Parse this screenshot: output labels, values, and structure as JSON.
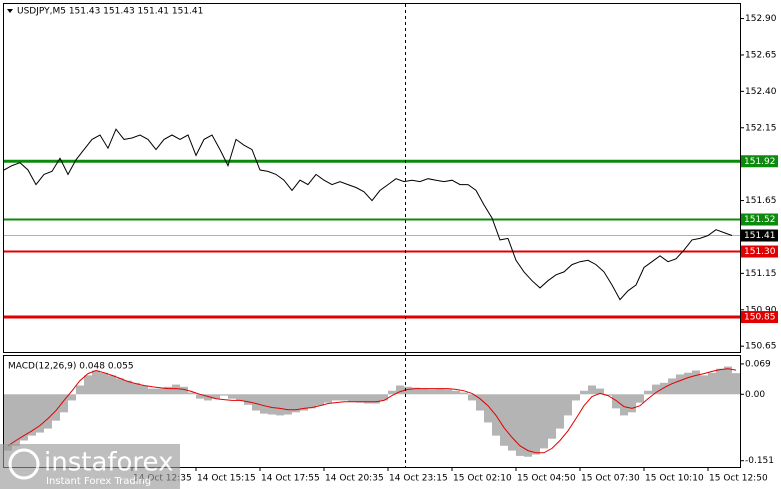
{
  "chart_data": [
    {
      "type": "line",
      "title": "USDJPY,M5  151.43 151.43 151.41 151.41",
      "color": "#000000",
      "values": [
        151.86,
        151.89,
        151.91,
        151.86,
        151.76,
        151.83,
        151.85,
        151.94,
        151.83,
        151.93,
        152.0,
        152.07,
        152.1,
        152.01,
        152.14,
        152.07,
        152.08,
        152.1,
        152.07,
        152.0,
        152.07,
        152.1,
        152.07,
        152.1,
        151.96,
        152.07,
        152.1,
        152.0,
        151.89,
        152.07,
        152.03,
        152.0,
        151.86,
        151.85,
        151.83,
        151.79,
        151.72,
        151.79,
        151.76,
        151.83,
        151.79,
        151.76,
        151.78,
        151.76,
        151.74,
        151.71,
        151.65,
        151.72,
        151.76,
        151.8,
        151.78,
        151.79,
        151.78,
        151.8,
        151.79,
        151.78,
        151.79,
        151.76,
        151.76,
        151.72,
        151.62,
        151.53,
        151.38,
        151.39,
        151.24,
        151.16,
        151.1,
        151.05,
        151.1,
        151.14,
        151.16,
        151.21,
        151.23,
        151.24,
        151.21,
        151.16,
        151.07,
        150.97,
        151.03,
        151.07,
        151.19,
        151.23,
        151.27,
        151.23,
        151.25,
        151.31,
        151.38,
        151.39,
        151.41,
        151.45,
        151.43,
        151.41
      ],
      "xlim": [
        0,
        92
      ],
      "xticks": [
        {
          "value": 16,
          "label": "14 Oct 12:35"
        },
        {
          "value": 24,
          "label": "14 Oct 15:15"
        },
        {
          "value": 32,
          "label": "14 Oct 17:55"
        },
        {
          "value": 40,
          "label": "14 Oct 20:35"
        },
        {
          "value": 48,
          "label": "14 Oct 23:15"
        },
        {
          "value": 56,
          "label": "15 Oct 02:10"
        },
        {
          "value": 64,
          "label": "15 Oct 04:50"
        },
        {
          "value": 72,
          "label": "15 Oct 07:30"
        },
        {
          "value": 80,
          "label": "15 Oct 10:10"
        },
        {
          "value": 88,
          "label": "15 Oct 12:50"
        }
      ],
      "ylim": [
        150.61,
        153.0
      ],
      "yticks": [
        {
          "value": 152.9,
          "label": "152.90"
        },
        152.65,
        {
          "value": 152.4,
          "label": "152.40"
        },
        152.15,
        {
          "value": 151.9,
          "label": "151.90"
        },
        151.65,
        {
          "value": 151.4,
          "label": "151.40"
        },
        151.15,
        {
          "value": 150.9,
          "label": "150.90"
        },
        150.65
      ],
      "levels": [
        {
          "value": 151.92,
          "color": "#0b8a0b"
        },
        {
          "value": 151.52,
          "color": "#0b8a0b"
        },
        {
          "value": 151.3,
          "label": "151.30",
          "color": "#e00000"
        },
        {
          "value": 150.85,
          "color": "#e00000"
        }
      ],
      "last": 151.41
    },
    {
      "type": "macd",
      "title": "MACD(12,26,9) 0.048 0.055",
      "xlim": [
        0,
        92
      ],
      "ylim": [
        -0.163,
        0.087
      ],
      "yticks": [
        0.069,
        {
          "value": 0,
          "label": "0.00"
        },
        -0.151
      ],
      "histogram": {
        "color": "#b4b4b4",
        "values": [
          -0.128,
          -0.117,
          -0.105,
          -0.094,
          -0.087,
          -0.078,
          -0.06,
          -0.041,
          -0.014,
          0.02,
          0.043,
          0.054,
          0.049,
          0.043,
          0.036,
          0.031,
          0.026,
          0.02,
          0.013,
          0.013,
          0.017,
          0.022,
          0.017,
          0.004,
          -0.01,
          -0.014,
          -0.01,
          -0.003,
          -0.01,
          -0.014,
          -0.024,
          -0.037,
          -0.044,
          -0.046,
          -0.048,
          -0.046,
          -0.041,
          -0.037,
          -0.032,
          -0.026,
          -0.019,
          -0.014,
          -0.014,
          -0.017,
          -0.019,
          -0.021,
          -0.021,
          -0.014,
          0.008,
          0.02,
          0.017,
          0.015,
          0.013,
          0.011,
          0.013,
          0.011,
          0.008,
          0.004,
          -0.014,
          -0.037,
          -0.064,
          -0.094,
          -0.117,
          -0.128,
          -0.14,
          -0.142,
          -0.137,
          -0.123,
          -0.101,
          -0.078,
          -0.048,
          -0.014,
          0.008,
          0.02,
          0.013,
          -0.003,
          -0.032,
          -0.048,
          -0.041,
          -0.019,
          0.008,
          0.022,
          0.026,
          0.036,
          0.045,
          0.049,
          0.054,
          0.043,
          0.049,
          0.058,
          0.063,
          0.048
        ]
      },
      "signal": {
        "color": "#e00000",
        "values": [
          -0.117,
          -0.105,
          -0.094,
          -0.083,
          -0.071,
          -0.055,
          -0.037,
          -0.014,
          0.008,
          0.031,
          0.047,
          0.054,
          0.049,
          0.043,
          0.036,
          0.029,
          0.024,
          0.02,
          0.017,
          0.015,
          0.013,
          0.013,
          0.011,
          0.006,
          0.0,
          -0.005,
          -0.01,
          -0.012,
          -0.014,
          -0.014,
          -0.017,
          -0.021,
          -0.026,
          -0.03,
          -0.032,
          -0.035,
          -0.035,
          -0.032,
          -0.03,
          -0.026,
          -0.021,
          -0.019,
          -0.017,
          -0.017,
          -0.017,
          -0.017,
          -0.017,
          -0.014,
          -0.003,
          0.006,
          0.011,
          0.013,
          0.013,
          0.013,
          0.013,
          0.013,
          0.011,
          0.008,
          0.002,
          -0.01,
          -0.026,
          -0.048,
          -0.076,
          -0.098,
          -0.117,
          -0.128,
          -0.133,
          -0.133,
          -0.123,
          -0.105,
          -0.083,
          -0.055,
          -0.026,
          -0.005,
          0.002,
          -0.003,
          -0.014,
          -0.028,
          -0.032,
          -0.026,
          -0.01,
          0.004,
          0.015,
          0.024,
          0.031,
          0.038,
          0.043,
          0.047,
          0.052,
          0.056,
          0.058,
          0.055
        ]
      }
    }
  ],
  "watermark": {
    "name": "instaforex",
    "tagline": "Instant Forex Trading"
  }
}
